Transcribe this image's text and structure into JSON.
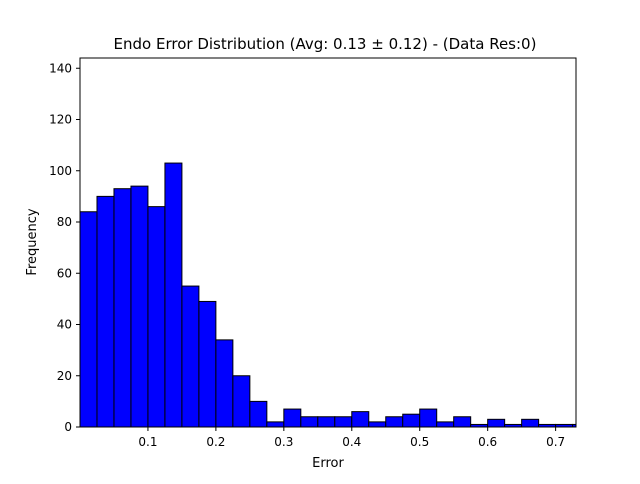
{
  "chart_data": {
    "type": "bar",
    "title": "Endo Error Distribution (Avg: 0.13 ± 0.12) - (Data Res:0)",
    "xlabel": "Error",
    "ylabel": "Frequency",
    "xlim": [
      0.0,
      0.73
    ],
    "ylim": [
      0,
      144
    ],
    "bin_start": 0.0,
    "bin_width": 0.025,
    "values": [
      84,
      90,
      93,
      94,
      86,
      103,
      55,
      49,
      34,
      20,
      10,
      2,
      7,
      4,
      4,
      4,
      6,
      2,
      4,
      5,
      7,
      2,
      4,
      1,
      3,
      1,
      3,
      1,
      1,
      1
    ],
    "xticks": [
      0.1,
      0.2,
      0.3,
      0.4,
      0.5,
      0.6,
      0.7
    ],
    "yticks": [
      0,
      20,
      40,
      60,
      80,
      100,
      120,
      140
    ],
    "bar_color": "#0000ff",
    "edge_color": "#000000",
    "grid": false,
    "legend": "none"
  }
}
